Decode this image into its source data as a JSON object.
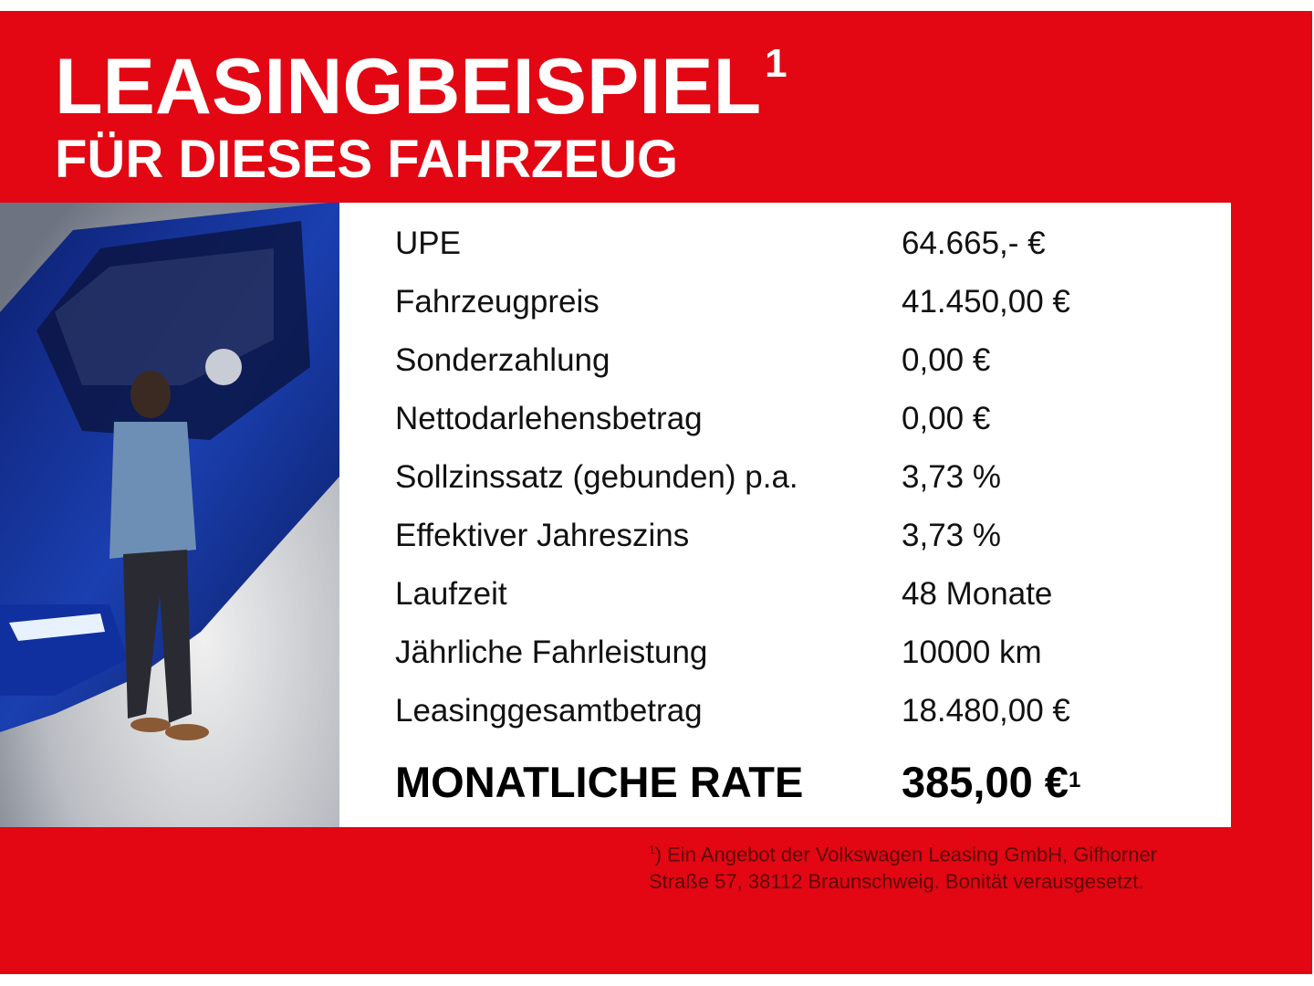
{
  "header": {
    "title": "LEASINGBEISPIEL",
    "title_sup": "1",
    "subtitle": "FÜR DIESES FAHRZEUG"
  },
  "colors": {
    "background_red": "#e30613",
    "panel": "#ffffff",
    "car_blue": "#1a3fb0"
  },
  "photo": {
    "description_icon": "car-with-man-photo"
  },
  "table": {
    "rows": [
      {
        "label": "UPE",
        "value": "64.665,- €"
      },
      {
        "label": "Fahrzeugpreis",
        "value": "41.450,00 €"
      },
      {
        "label": "Sonderzahlung",
        "value": "0,00 €"
      },
      {
        "label": "Nettodarlehensbetrag",
        "value": "0,00 €"
      },
      {
        "label": "Sollzinssatz (gebunden) p.a.",
        "value": "3,73 %"
      },
      {
        "label": "Effektiver Jahreszins",
        "value": "3,73 %"
      },
      {
        "label": "Laufzeit",
        "value": "48 Monate"
      },
      {
        "label": "Jährliche Fahrleistung",
        "value": "10000 km"
      },
      {
        "label": "Leasinggesamtbetrag",
        "value": "18.480,00 €"
      }
    ],
    "total": {
      "label": "MONATLICHE RATE",
      "value": "385,00 €",
      "sup": "1"
    }
  },
  "footnote": {
    "sup": "1",
    "line1": ") Ein Angebot der Volkswagen Leasing GmbH, Gifhorner",
    "line2": "Straße 57, 38112 Braunschweig. Bonität verausgesetzt."
  }
}
